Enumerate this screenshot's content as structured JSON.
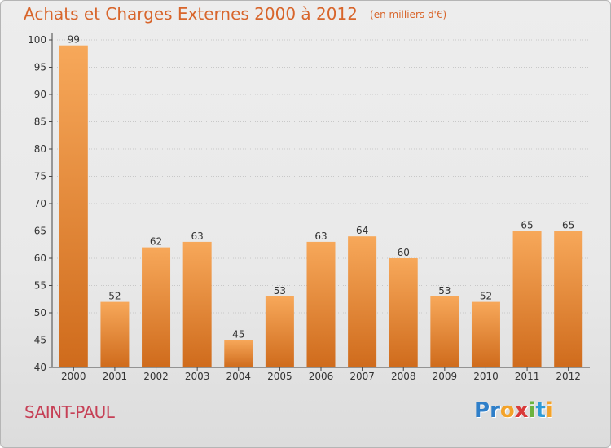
{
  "header": {
    "title": "Achats et Charges Externes 2000 à 2012",
    "unit": "(en milliers d'€)"
  },
  "footer": {
    "commune": "SAINT-PAUL",
    "logo_letters": [
      {
        "char": "P",
        "color": "#2f7fc9"
      },
      {
        "char": "r",
        "color": "#2f7fc9"
      },
      {
        "char": "o",
        "color": "#f3a32a"
      },
      {
        "char": "x",
        "color": "#d93a3a"
      },
      {
        "char": "i",
        "color": "#6cb33f"
      },
      {
        "char": "t",
        "color": "#2f9bd6"
      },
      {
        "char": "i",
        "color": "#f3a32a"
      }
    ]
  },
  "colors": {
    "title": "#d8652b",
    "commune": "#c64056",
    "bar_light": "#f7a85a",
    "bar_dark": "#cf6b1c",
    "grid": "#c8c8c8",
    "axis": "#444444"
  },
  "chart_data": {
    "type": "bar",
    "categories": [
      "2000",
      "2001",
      "2002",
      "2003",
      "2004",
      "2005",
      "2006",
      "2007",
      "2008",
      "2009",
      "2010",
      "2011",
      "2012"
    ],
    "values": [
      99,
      52,
      62,
      63,
      45,
      53,
      63,
      64,
      60,
      53,
      52,
      65,
      65
    ],
    "ylim": [
      40,
      100
    ],
    "yticks": [
      40,
      45,
      50,
      55,
      60,
      65,
      70,
      75,
      80,
      85,
      90,
      95,
      100
    ],
    "grid": true,
    "legend": "none"
  }
}
